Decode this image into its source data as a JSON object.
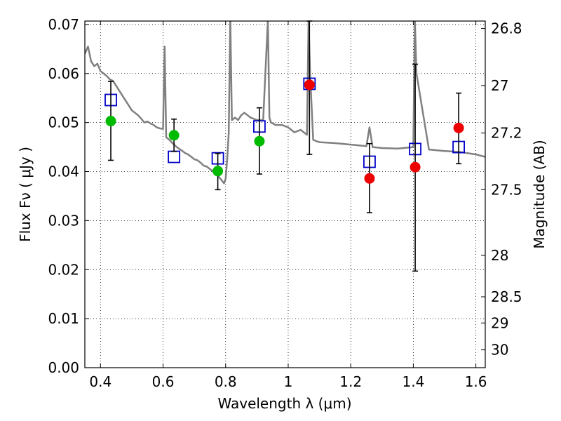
{
  "chart_data": {
    "type": "scatter",
    "xlabel": "Wavelength  λ (μm)",
    "ylabel": "Flux  Fν  ( μJy )",
    "ylabel_right": "Magnitude (AB)",
    "xlim": [
      0.35,
      1.63
    ],
    "ylim": [
      0.0,
      0.0707
    ],
    "grid": true,
    "grid_style": "dotted",
    "x_ticks": [
      0.4,
      0.6,
      0.8,
      1.0,
      1.2,
      1.4,
      1.6
    ],
    "x_tick_labels": [
      "0.4",
      "0.6",
      "0.8",
      "1",
      "1.2",
      "1.4",
      "1.6"
    ],
    "y_ticks": [
      0.0,
      0.01,
      0.02,
      0.03,
      0.04,
      0.05,
      0.06,
      0.07
    ],
    "y_tick_labels": [
      "0.00",
      "0.01",
      "0.02",
      "0.03",
      "0.04",
      "0.05",
      "0.06",
      "0.07"
    ],
    "right_ticks": [
      {
        "mag": 26.8,
        "label": "26.8"
      },
      {
        "mag": 27,
        "label": "27"
      },
      {
        "mag": 27.2,
        "label": "27.2"
      },
      {
        "mag": 27.5,
        "label": "27.5"
      },
      {
        "mag": 28,
        "label": "28"
      },
      {
        "mag": 28.5,
        "label": "28.5"
      },
      {
        "mag": 29,
        "label": "29"
      },
      {
        "mag": 30,
        "label": "30"
      }
    ],
    "series": [
      {
        "marker": "line",
        "color": "#808080",
        "x": [
          0.35,
          0.36,
          0.365,
          0.37,
          0.38,
          0.39,
          0.4,
          0.41,
          0.42,
          0.43,
          0.44,
          0.45,
          0.46,
          0.47,
          0.48,
          0.49,
          0.5,
          0.51,
          0.52,
          0.53,
          0.54,
          0.55,
          0.56,
          0.57,
          0.58,
          0.59,
          0.6,
          0.605,
          0.61,
          0.62,
          0.63,
          0.64,
          0.65,
          0.66,
          0.67,
          0.68,
          0.69,
          0.7,
          0.71,
          0.72,
          0.73,
          0.74,
          0.75,
          0.76,
          0.77,
          0.78,
          0.79,
          0.795,
          0.8,
          0.805,
          0.81,
          0.815,
          0.82,
          0.83,
          0.84,
          0.85,
          0.86,
          0.87,
          0.88,
          0.9,
          0.92,
          0.935,
          0.94,
          0.945,
          0.96,
          0.98,
          1.0,
          1.02,
          1.04,
          1.06,
          1.065,
          1.07,
          1.08,
          1.09,
          1.1,
          1.15,
          1.2,
          1.25,
          1.26,
          1.27,
          1.3,
          1.35,
          1.4,
          1.405,
          1.41,
          1.45,
          1.5,
          1.55,
          1.6,
          1.63
        ],
        "y": [
          0.064,
          0.0655,
          0.064,
          0.0625,
          0.0615,
          0.062,
          0.0605,
          0.06,
          0.0595,
          0.0588,
          0.0585,
          0.0575,
          0.0565,
          0.0555,
          0.0545,
          0.0535,
          0.0525,
          0.052,
          0.0515,
          0.0508,
          0.05,
          0.0502,
          0.0498,
          0.0495,
          0.049,
          0.0488,
          0.0487,
          0.0655,
          0.047,
          0.0465,
          0.0458,
          0.0452,
          0.0447,
          0.0443,
          0.0438,
          0.0435,
          0.043,
          0.0425,
          0.0423,
          0.0418,
          0.0412,
          0.041,
          0.0405,
          0.04,
          0.0395,
          0.0388,
          0.038,
          0.0376,
          0.0385,
          0.0425,
          0.048,
          0.0715,
          0.0505,
          0.051,
          0.0505,
          0.0515,
          0.052,
          0.0515,
          0.051,
          0.0505,
          0.0505,
          0.071,
          0.051,
          0.05,
          0.0495,
          0.0495,
          0.049,
          0.048,
          0.0485,
          0.0475,
          0.071,
          0.06,
          0.0465,
          0.0462,
          0.046,
          0.0458,
          0.0455,
          0.0452,
          0.049,
          0.045,
          0.0448,
          0.0447,
          0.045,
          0.071,
          0.06,
          0.0445,
          0.0442,
          0.044,
          0.0435,
          0.043
        ]
      },
      {
        "marker": "open-square",
        "color": "#0000c8",
        "x": [
          0.433,
          0.635,
          0.775,
          0.908,
          1.068,
          1.26,
          1.406,
          1.545
        ],
        "y": [
          0.0546,
          0.043,
          0.0427,
          0.0492,
          0.0579,
          0.042,
          0.0446,
          0.045
        ]
      },
      {
        "marker": "filled-circle",
        "color": "#00bb00",
        "x": [
          0.433,
          0.635,
          0.775,
          0.908
        ],
        "y": [
          0.0503,
          0.0474,
          0.0401,
          0.0462
        ],
        "yerr_low": [
          0.0423,
          0.0441,
          0.0363,
          0.0395
        ],
        "yerr_high": [
          0.0584,
          0.0507,
          0.0437,
          0.053
        ]
      },
      {
        "marker": "filled-circle",
        "color": "#ee0000",
        "x": [
          1.068,
          1.26,
          1.406,
          1.545
        ],
        "y": [
          0.0577,
          0.0386,
          0.0409,
          0.0489
        ],
        "yerr_low": [
          0.0435,
          0.0316,
          0.0197,
          0.0416
        ],
        "yerr_high": [
          0.0707,
          0.0457,
          0.0619,
          0.056
        ]
      }
    ]
  }
}
